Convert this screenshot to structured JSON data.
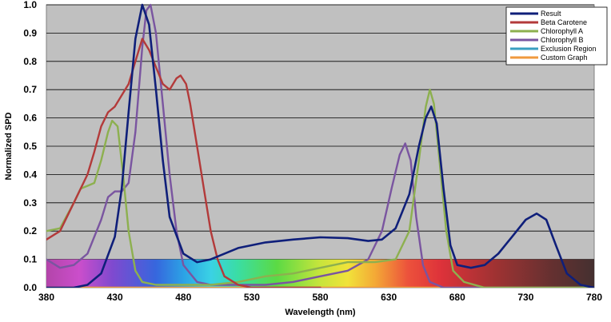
{
  "chart_data": {
    "type": "line",
    "title": "",
    "xlabel": "Wavelength (nm)",
    "ylabel": "Normalized SPD",
    "xlim": [
      380,
      780
    ],
    "ylim": [
      0,
      1.0
    ],
    "x_ticks": [
      "380",
      "430",
      "480",
      "530",
      "580",
      "630",
      "680",
      "730",
      "780"
    ],
    "y_ticks": [
      "0.0",
      "0.1",
      "0.2",
      "0.3",
      "0.4",
      "0.5",
      "0.6",
      "0.7",
      "0.8",
      "0.9",
      "1.0"
    ],
    "grid": true,
    "legend_position": "top-right",
    "plot_background": "#c0c0c0",
    "gridline_color": "#000000",
    "spectrum_band": {
      "y_top": 0.1,
      "x_start": 380,
      "x_end": 780
    },
    "series": [
      {
        "name": "Result",
        "color": "#0f1f7a",
        "points": [
          [
            380,
            0.0
          ],
          [
            400,
            0.0
          ],
          [
            410,
            0.01
          ],
          [
            420,
            0.05
          ],
          [
            430,
            0.18
          ],
          [
            435,
            0.35
          ],
          [
            440,
            0.62
          ],
          [
            445,
            0.88
          ],
          [
            450,
            1.0
          ],
          [
            455,
            0.93
          ],
          [
            460,
            0.7
          ],
          [
            465,
            0.45
          ],
          [
            470,
            0.25
          ],
          [
            480,
            0.12
          ],
          [
            490,
            0.09
          ],
          [
            500,
            0.1
          ],
          [
            520,
            0.14
          ],
          [
            540,
            0.16
          ],
          [
            560,
            0.17
          ],
          [
            580,
            0.178
          ],
          [
            600,
            0.175
          ],
          [
            615,
            0.165
          ],
          [
            625,
            0.17
          ],
          [
            635,
            0.21
          ],
          [
            645,
            0.33
          ],
          [
            652,
            0.5
          ],
          [
            657,
            0.6
          ],
          [
            661,
            0.64
          ],
          [
            665,
            0.58
          ],
          [
            670,
            0.35
          ],
          [
            675,
            0.15
          ],
          [
            680,
            0.08
          ],
          [
            690,
            0.07
          ],
          [
            700,
            0.08
          ],
          [
            710,
            0.12
          ],
          [
            720,
            0.18
          ],
          [
            730,
            0.24
          ],
          [
            738,
            0.262
          ],
          [
            745,
            0.24
          ],
          [
            752,
            0.15
          ],
          [
            760,
            0.05
          ],
          [
            770,
            0.01
          ],
          [
            780,
            0.0
          ]
        ]
      },
      {
        "name": "Beta Carotene",
        "color": "#b33a3a",
        "points": [
          [
            380,
            0.17
          ],
          [
            390,
            0.2
          ],
          [
            400,
            0.3
          ],
          [
            410,
            0.4
          ],
          [
            415,
            0.48
          ],
          [
            420,
            0.57
          ],
          [
            425,
            0.62
          ],
          [
            430,
            0.64
          ],
          [
            440,
            0.72
          ],
          [
            445,
            0.8
          ],
          [
            450,
            0.88
          ],
          [
            455,
            0.84
          ],
          [
            460,
            0.78
          ],
          [
            465,
            0.72
          ],
          [
            470,
            0.7
          ],
          [
            475,
            0.74
          ],
          [
            478,
            0.75
          ],
          [
            482,
            0.72
          ],
          [
            485,
            0.65
          ],
          [
            490,
            0.5
          ],
          [
            495,
            0.35
          ],
          [
            500,
            0.2
          ],
          [
            505,
            0.1
          ],
          [
            510,
            0.04
          ],
          [
            520,
            0.01
          ],
          [
            530,
            0.0
          ],
          [
            580,
            0.0
          ]
        ]
      },
      {
        "name": "Chlorophyll A",
        "color": "#8db04f",
        "points": [
          [
            380,
            0.2
          ],
          [
            390,
            0.21
          ],
          [
            400,
            0.3
          ],
          [
            405,
            0.35
          ],
          [
            410,
            0.36
          ],
          [
            415,
            0.37
          ],
          [
            420,
            0.45
          ],
          [
            425,
            0.55
          ],
          [
            428,
            0.59
          ],
          [
            432,
            0.57
          ],
          [
            436,
            0.4
          ],
          [
            440,
            0.2
          ],
          [
            445,
            0.06
          ],
          [
            450,
            0.02
          ],
          [
            460,
            0.01
          ],
          [
            500,
            0.01
          ],
          [
            520,
            0.02
          ],
          [
            540,
            0.04
          ],
          [
            560,
            0.05
          ],
          [
            580,
            0.07
          ],
          [
            600,
            0.09
          ],
          [
            620,
            0.09
          ],
          [
            635,
            0.1
          ],
          [
            645,
            0.2
          ],
          [
            652,
            0.45
          ],
          [
            657,
            0.64
          ],
          [
            660,
            0.7
          ],
          [
            663,
            0.65
          ],
          [
            667,
            0.45
          ],
          [
            672,
            0.2
          ],
          [
            677,
            0.06
          ],
          [
            685,
            0.02
          ],
          [
            700,
            0.0
          ],
          [
            780,
            0.0
          ]
        ]
      },
      {
        "name": "Chlorophyll B",
        "color": "#7a55a0",
        "points": [
          [
            380,
            0.1
          ],
          [
            390,
            0.07
          ],
          [
            400,
            0.08
          ],
          [
            410,
            0.12
          ],
          [
            420,
            0.24
          ],
          [
            425,
            0.32
          ],
          [
            430,
            0.34
          ],
          [
            435,
            0.34
          ],
          [
            440,
            0.37
          ],
          [
            445,
            0.55
          ],
          [
            450,
            0.85
          ],
          [
            453,
            0.98
          ],
          [
            456,
            1.0
          ],
          [
            460,
            0.9
          ],
          [
            465,
            0.65
          ],
          [
            470,
            0.4
          ],
          [
            475,
            0.2
          ],
          [
            480,
            0.08
          ],
          [
            490,
            0.02
          ],
          [
            500,
            0.01
          ],
          [
            540,
            0.01
          ],
          [
            560,
            0.02
          ],
          [
            580,
            0.04
          ],
          [
            600,
            0.06
          ],
          [
            615,
            0.1
          ],
          [
            625,
            0.2
          ],
          [
            632,
            0.35
          ],
          [
            638,
            0.47
          ],
          [
            642,
            0.51
          ],
          [
            646,
            0.45
          ],
          [
            650,
            0.25
          ],
          [
            655,
            0.08
          ],
          [
            660,
            0.02
          ],
          [
            670,
            0.0
          ],
          [
            780,
            0.0
          ]
        ]
      },
      {
        "name": "Exclusion Region",
        "color": "#3a9ec0",
        "points": []
      },
      {
        "name": "Custom Graph",
        "color": "#f09a3e",
        "points": [
          [
            380,
            0.0
          ],
          [
            780,
            0.0
          ]
        ]
      }
    ]
  }
}
